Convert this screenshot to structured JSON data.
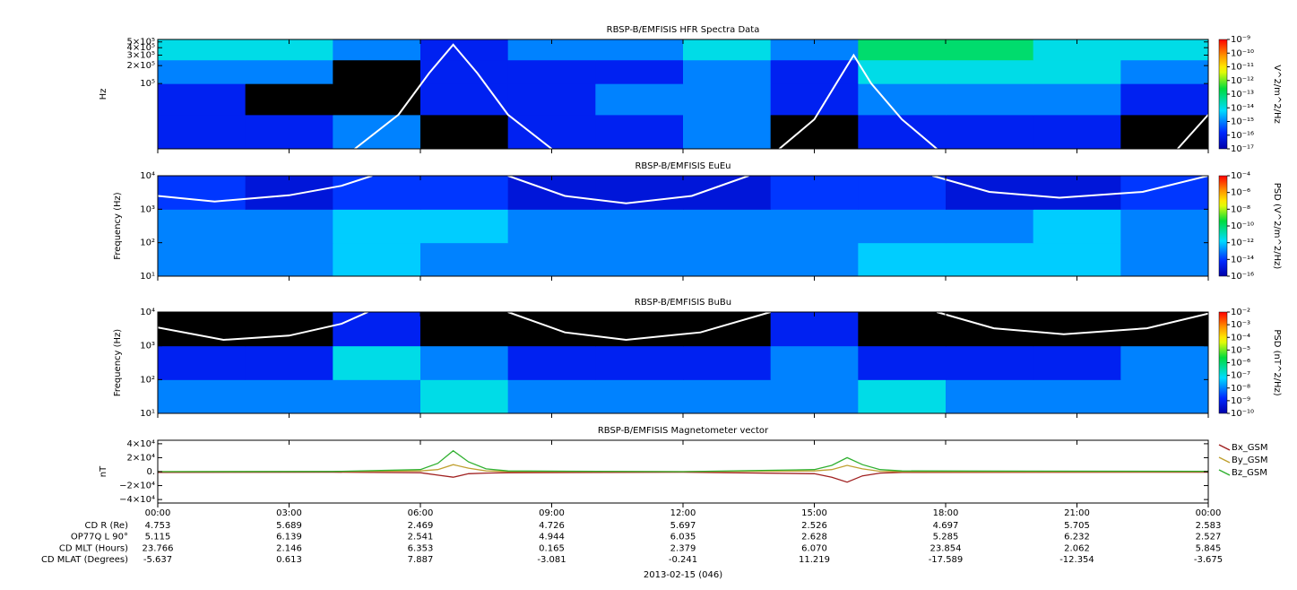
{
  "chart_data": [
    {
      "type": "spectrogram",
      "title": "RBSP-B/EMFISIS  HFR Spectra Data",
      "ylabel": "Hz",
      "ylog": true,
      "xlim": [
        0,
        24
      ],
      "xticks": [
        0,
        3,
        6,
        9,
        12,
        15,
        18,
        21,
        24
      ],
      "ylim": [
        8000,
        550000
      ],
      "yticks": [
        {
          "value": 500000,
          "label": "5×10⁵"
        },
        {
          "value": 400000,
          "label": "4×10⁵"
        },
        {
          "value": 300000,
          "label": "3×10⁵"
        },
        {
          "value": 200000,
          "label": "2×10⁵"
        },
        {
          "value": 100000,
          "label": "10⁵"
        }
      ],
      "xbins": [
        0,
        2,
        4,
        6,
        8,
        10,
        12,
        14,
        16,
        18,
        20,
        22,
        24
      ],
      "ybins": [
        8000,
        30000,
        100000,
        250000,
        550000
      ],
      "z": [
        [
          1e-16,
          1e-16,
          1e-15,
          null,
          1e-16,
          1e-16,
          1e-15,
          null,
          1e-16,
          1e-16,
          1e-16,
          null
        ],
        [
          1e-16,
          null,
          null,
          1e-16,
          1e-16,
          1e-15,
          1e-15,
          1e-16,
          1e-15,
          1e-15,
          1e-15,
          1e-16
        ],
        [
          1e-15,
          1e-15,
          null,
          1e-16,
          1e-16,
          1e-16,
          1e-15,
          1e-16,
          1e-14,
          1e-14,
          1e-14,
          1e-15
        ],
        [
          1e-14,
          1e-14,
          1e-15,
          1e-16,
          1e-15,
          1e-15,
          1e-14,
          1e-15,
          1e-13,
          1e-13,
          1e-14,
          1e-14
        ]
      ],
      "clabel": "V^2/m^2/Hz",
      "clim": [
        1e-17,
        1e-09
      ],
      "cticks": [
        {
          "value": 1e-09,
          "label": "10⁻⁹"
        },
        {
          "value": 1e-10,
          "label": "10⁻¹⁰"
        },
        {
          "value": 1e-11,
          "label": "10⁻¹¹"
        },
        {
          "value": 1e-12,
          "label": "10⁻¹²"
        },
        {
          "value": 1e-13,
          "label": "10⁻¹³"
        },
        {
          "value": 1e-14,
          "label": "10⁻¹⁴"
        },
        {
          "value": 1e-15,
          "label": "10⁻¹⁵"
        },
        {
          "value": 1e-16,
          "label": "10⁻¹⁶"
        },
        {
          "value": 1e-17,
          "label": "10⁻¹⁷"
        }
      ],
      "series": [
        {
          "color": "#ffffff",
          "x": [
            4.5,
            5.5,
            6.2,
            6.75,
            7.3,
            8,
            9,
            null,
            14.2,
            15,
            15.5,
            15.9,
            16.3,
            17,
            17.8,
            null,
            23.3,
            24
          ],
          "values": [
            8000,
            30000,
            150000,
            450000,
            150000,
            30000,
            8000,
            null,
            8000,
            25000,
            100000,
            300000,
            100000,
            25000,
            8000,
            null,
            8000,
            30000
          ]
        }
      ]
    },
    {
      "type": "spectrogram",
      "title": "RBSP-B/EMFISIS  EuEu",
      "ylabel": "Frequency (Hz)",
      "ylog": true,
      "xlim": [
        0,
        24
      ],
      "xticks": [
        0,
        3,
        6,
        9,
        12,
        15,
        18,
        21,
        24
      ],
      "ylim": [
        10,
        10000
      ],
      "yticks": [
        {
          "value": 10,
          "label": "10¹"
        },
        {
          "value": 100,
          "label": "10²"
        },
        {
          "value": 1000,
          "label": "10³"
        },
        {
          "value": 10000,
          "label": "10⁴"
        }
      ],
      "xbins": [
        0,
        2,
        4,
        6,
        8,
        10,
        12,
        14,
        16,
        18,
        20,
        22,
        24
      ],
      "ybins": [
        10,
        100,
        1000,
        10000
      ],
      "z": [
        [
          1e-13,
          1e-13,
          1e-12,
          1e-13,
          1e-13,
          1e-13,
          1e-13,
          1e-13,
          1e-12,
          1e-12,
          1e-12,
          1e-13
        ],
        [
          1e-13,
          1e-13,
          1e-12,
          1e-12,
          1e-13,
          1e-13,
          1e-13,
          1e-13,
          1e-13,
          1e-13,
          1e-12,
          1e-13
        ],
        [
          1e-14,
          1e-15,
          1e-14,
          1e-14,
          1e-15,
          1e-15,
          1e-15,
          1e-14,
          1e-14,
          1e-15,
          1e-15,
          1e-14
        ]
      ],
      "clabel": "PSD (V^2/m^2/Hz)",
      "clim": [
        1e-16,
        0.0001
      ],
      "cticks": [
        {
          "value": 0.0001,
          "label": "10⁻⁴"
        },
        {
          "value": 1e-06,
          "label": "10⁻⁶"
        },
        {
          "value": 1e-08,
          "label": "10⁻⁸"
        },
        {
          "value": 1e-10,
          "label": "10⁻¹⁰"
        },
        {
          "value": 1e-12,
          "label": "10⁻¹²"
        },
        {
          "value": 1e-14,
          "label": "10⁻¹⁴"
        },
        {
          "value": 1e-16,
          "label": "10⁻¹⁶"
        }
      ],
      "series": [
        {
          "color": "#ffffff",
          "x": [
            0,
            1.3,
            3,
            4.2,
            4.9,
            null,
            8,
            9.3,
            10.7,
            12.2,
            13.5,
            null,
            17.7,
            19,
            20.6,
            22.5,
            24
          ],
          "values": [
            2500,
            1700,
            2600,
            5000,
            10000,
            null,
            10000,
            2500,
            1500,
            2500,
            10000,
            null,
            10000,
            3300,
            2200,
            3300,
            10000
          ]
        }
      ]
    },
    {
      "type": "spectrogram",
      "title": "RBSP-B/EMFISIS  BuBu",
      "ylabel": "Frequency (Hz)",
      "ylog": true,
      "xlim": [
        0,
        24
      ],
      "xticks": [
        0,
        3,
        6,
        9,
        12,
        15,
        18,
        21,
        24
      ],
      "ylim": [
        10,
        10000
      ],
      "yticks": [
        {
          "value": 10,
          "label": "10¹"
        },
        {
          "value": 100,
          "label": "10²"
        },
        {
          "value": 1000,
          "label": "10³"
        },
        {
          "value": 10000,
          "label": "10⁴"
        }
      ],
      "xbins": [
        0,
        2,
        4,
        6,
        8,
        10,
        12,
        14,
        16,
        18,
        20,
        22,
        24
      ],
      "ybins": [
        10,
        100,
        1000,
        10000
      ],
      "z": [
        [
          1e-08,
          1e-08,
          1e-08,
          1e-07,
          1e-08,
          1e-08,
          1e-08,
          1e-08,
          1e-07,
          1e-08,
          1e-08,
          1e-08
        ],
        [
          1e-09,
          1e-09,
          1e-07,
          1e-08,
          1e-09,
          1e-09,
          1e-09,
          1e-08,
          1e-09,
          1e-09,
          1e-09,
          1e-08
        ],
        [
          null,
          null,
          1e-09,
          null,
          null,
          null,
          null,
          1e-09,
          null,
          null,
          null,
          null
        ]
      ],
      "clabel": "PSD (nT^2/Hz)",
      "clim": [
        1e-10,
        0.01
      ],
      "cticks": [
        {
          "value": 0.01,
          "label": "10⁻²"
        },
        {
          "value": 0.001,
          "label": "10⁻³"
        },
        {
          "value": 0.0001,
          "label": "10⁻⁴"
        },
        {
          "value": 1e-05,
          "label": "10⁻⁵"
        },
        {
          "value": 1e-06,
          "label": "10⁻⁶"
        },
        {
          "value": 1e-07,
          "label": "10⁻⁷"
        },
        {
          "value": 1e-08,
          "label": "10⁻⁸"
        },
        {
          "value": 1e-09,
          "label": "10⁻⁹"
        },
        {
          "value": 1e-10,
          "label": "10⁻¹⁰"
        }
      ],
      "series": [
        {
          "color": "#ffffff",
          "x": [
            0,
            1.5,
            3,
            4.2,
            4.8,
            null,
            8,
            9.3,
            10.7,
            12.4,
            14,
            null,
            17.8,
            19.1,
            20.7,
            22.6,
            24
          ],
          "values": [
            3500,
            1500,
            2000,
            4500,
            10000,
            null,
            10000,
            2500,
            1500,
            2500,
            10000,
            null,
            10000,
            3300,
            2200,
            3300,
            9000
          ]
        }
      ]
    },
    {
      "type": "line",
      "title": "RBSP-B/EMFISIS  Magnetometer vector",
      "ylabel": "nT",
      "xlim": [
        0,
        24
      ],
      "xticks": [
        {
          "value": 0,
          "label": "00:00"
        },
        {
          "value": 3,
          "label": "03:00"
        },
        {
          "value": 6,
          "label": "06:00"
        },
        {
          "value": 9,
          "label": "09:00"
        },
        {
          "value": 12,
          "label": "12:00"
        },
        {
          "value": 15,
          "label": "15:00"
        },
        {
          "value": 18,
          "label": "18:00"
        },
        {
          "value": 21,
          "label": "21:00"
        },
        {
          "value": 24,
          "label": "00:00"
        }
      ],
      "ylim": [
        -45000,
        45000
      ],
      "yticks": [
        {
          "value": 40000,
          "label": "4×10⁴"
        },
        {
          "value": 20000,
          "label": "2×10⁴"
        },
        {
          "value": 0,
          "label": "0."
        },
        {
          "value": -20000,
          "label": "−2×10⁴"
        },
        {
          "value": -40000,
          "label": "−4×10⁴"
        }
      ],
      "x": [
        0,
        4,
        6,
        6.4,
        6.75,
        7.1,
        7.5,
        8,
        12,
        15,
        15.4,
        15.75,
        16.1,
        16.5,
        17,
        24
      ],
      "series": [
        {
          "name": "Bx_GSM",
          "color": "#a02020",
          "values": [
            -1000,
            -800,
            -1500,
            -5000,
            -8000,
            -3000,
            -2000,
            -1500,
            -800,
            -3000,
            -8000,
            -15000,
            -6000,
            -2000,
            -1000,
            -800
          ]
        },
        {
          "name": "By_GSM",
          "color": "#c0a030",
          "values": [
            0,
            100,
            1000,
            3000,
            10000,
            5000,
            1000,
            200,
            0,
            1000,
            3000,
            9000,
            4000,
            500,
            0,
            0
          ]
        },
        {
          "name": "Bz_GSM",
          "color": "#30b030",
          "values": [
            0,
            200,
            3000,
            12000,
            30000,
            14000,
            4000,
            1000,
            0,
            3000,
            9000,
            20000,
            10000,
            3000,
            1000,
            500
          ]
        }
      ]
    }
  ],
  "ephemeris": {
    "labels": [
      "CD R (Re)",
      "OP77Q L 90°",
      "CD MLT (Hours)",
      "CD MLAT (Degrees)"
    ],
    "rows": [
      [
        "4.753",
        "5.689",
        "2.469",
        "4.726",
        "5.697",
        "2.526",
        "4.697",
        "5.705",
        "2.583"
      ],
      [
        "5.115",
        "6.139",
        "2.541",
        "4.944",
        "6.035",
        "2.628",
        "5.285",
        "6.232",
        "2.527"
      ],
      [
        "23.766",
        "2.146",
        "6.353",
        "0.165",
        "2.379",
        "6.070",
        "23.854",
        "2.062",
        "5.845"
      ],
      [
        "-5.637",
        "0.613",
        "7.887",
        "-3.081",
        "-0.241",
        "11.219",
        "-17.589",
        "-12.354",
        "-3.675"
      ]
    ],
    "date": "2013-02-15 (046)"
  }
}
